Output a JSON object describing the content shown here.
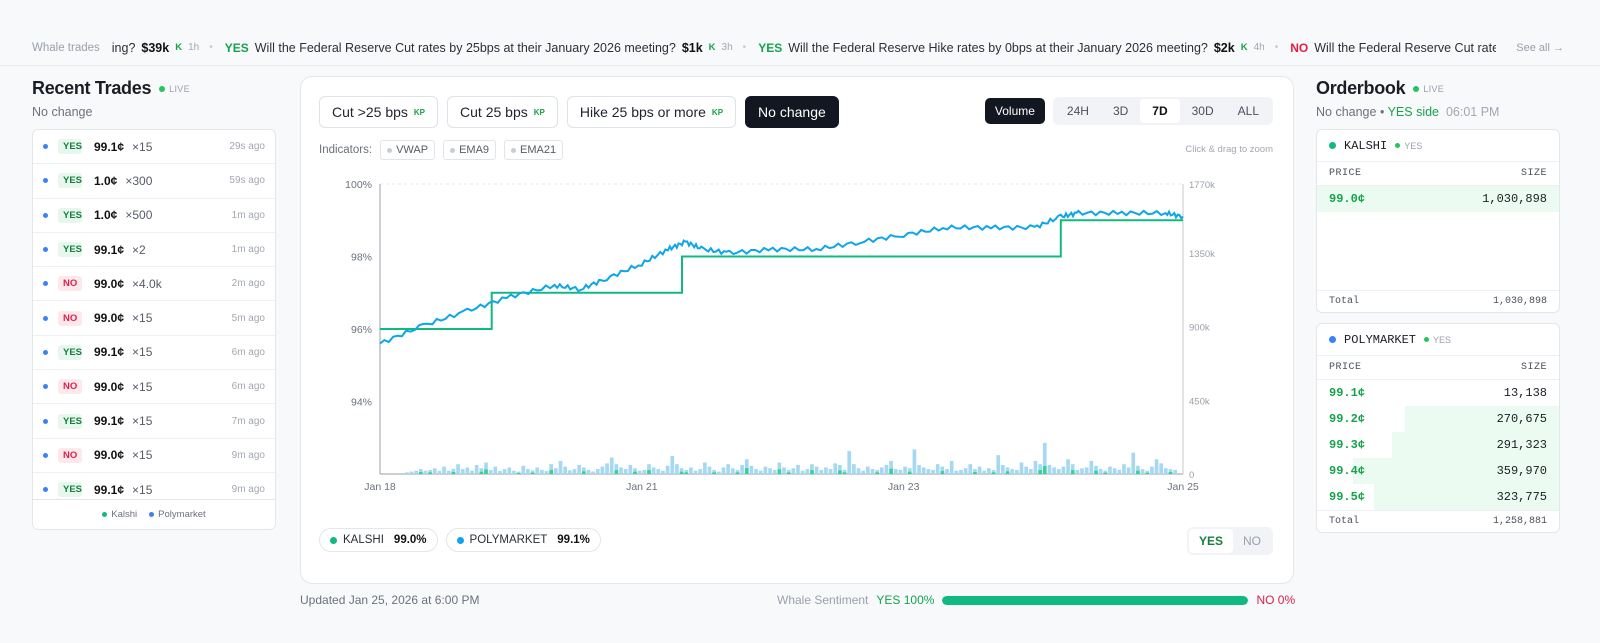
{
  "ticker": {
    "label": "Whale trades",
    "see_all": "See all →",
    "items": [
      {
        "side": "",
        "question": "ing?",
        "amount": "$39k",
        "platform": "K",
        "age": "1h"
      },
      {
        "side": "YES",
        "question": "Will the Federal Reserve Cut rates by 25bps at their January 2026 meeting?",
        "amount": "$1k",
        "platform": "K",
        "age": "3h"
      },
      {
        "side": "YES",
        "question": "Will the Federal Reserve Hike rates by 0bps at their January 2026 meeting?",
        "amount": "$2k",
        "platform": "K",
        "age": "4h"
      },
      {
        "side": "NO",
        "question": "Will the Federal Reserve Cut rates",
        "amount": "",
        "platform": "",
        "age": ""
      }
    ]
  },
  "recent_trades": {
    "title": "Recent Trades",
    "live": "LIVE",
    "subtitle": "No change",
    "rows": [
      {
        "side": "YES",
        "price": "99.1¢",
        "size": "×15",
        "ago": "29s ago"
      },
      {
        "side": "YES",
        "price": "1.0¢",
        "size": "×300",
        "ago": "59s ago"
      },
      {
        "side": "YES",
        "price": "1.0¢",
        "size": "×500",
        "ago": "1m ago"
      },
      {
        "side": "YES",
        "price": "99.1¢",
        "size": "×2",
        "ago": "1m ago"
      },
      {
        "side": "NO",
        "price": "99.0¢",
        "size": "×4.0k",
        "ago": "2m ago"
      },
      {
        "side": "NO",
        "price": "99.0¢",
        "size": "×15",
        "ago": "5m ago"
      },
      {
        "side": "YES",
        "price": "99.1¢",
        "size": "×15",
        "ago": "6m ago"
      },
      {
        "side": "NO",
        "price": "99.0¢",
        "size": "×15",
        "ago": "6m ago"
      },
      {
        "side": "YES",
        "price": "99.1¢",
        "size": "×15",
        "ago": "7m ago"
      },
      {
        "side": "NO",
        "price": "99.0¢",
        "size": "×15",
        "ago": "9m ago"
      },
      {
        "side": "YES",
        "price": "99.1¢",
        "size": "×15",
        "ago": "9m ago"
      }
    ],
    "legend": {
      "kalshi": "Kalshi",
      "polymarket": "Polymarket"
    }
  },
  "main": {
    "outcome_tabs": [
      {
        "label": "Cut >25 bps",
        "kp": "KP",
        "active": false
      },
      {
        "label": "Cut 25 bps",
        "kp": "KP",
        "active": false
      },
      {
        "label": "Hike 25 bps or more",
        "kp": "KP",
        "active": false
      },
      {
        "label": "No change",
        "kp": "",
        "active": true
      }
    ],
    "volume_label": "Volume",
    "ranges": [
      "24H",
      "3D",
      "7D",
      "30D",
      "ALL"
    ],
    "active_range": "7D",
    "indicators_label": "Indicators:",
    "indicators": [
      "VWAP",
      "EMA9",
      "EMA21"
    ],
    "hint": "Click & drag to zoom",
    "legend": [
      {
        "name": "KALSHI",
        "value": "99.0%",
        "color": "#10b981"
      },
      {
        "name": "POLYMARKET",
        "value": "99.1%",
        "color": "#0ea5e9"
      }
    ],
    "side_toggle": [
      "YES",
      "NO"
    ],
    "side_active": "YES"
  },
  "chart_data": {
    "type": "line",
    "x_ticks": [
      "Jan 18",
      "Jan 21",
      "Jan 23",
      "Jan 25"
    ],
    "y_left_ticks": [
      "100%",
      "98%",
      "96%",
      "94%"
    ],
    "y_right_ticks": [
      "1770k",
      "1350k",
      "900k",
      "450k",
      "0"
    ],
    "y_left_range": [
      92,
      100
    ],
    "y_right_range": [
      0,
      1770
    ],
    "grid": true,
    "series": [
      {
        "name": "KALSHI",
        "color": "#10b981",
        "x_days": [
          0,
          1.28,
          1.28,
          3.46,
          3.46,
          7.8,
          7.8,
          9.2
        ],
        "values": [
          96.0,
          96.0,
          97.0,
          97.0,
          98.0,
          98.0,
          99.0,
          99.0
        ]
      },
      {
        "name": "POLYMARKET",
        "color": "#0ea5e9",
        "x_days": [
          0,
          0.5,
          1.0,
          1.5,
          2.0,
          2.3,
          2.6,
          3.0,
          3.3,
          3.5,
          3.7,
          4.0,
          4.5,
          5.0,
          5.5,
          6.0,
          6.5,
          7.0,
          7.5,
          7.8,
          8.0,
          8.5,
          9.0,
          9.2
        ],
        "values": [
          95.6,
          96.1,
          96.5,
          96.9,
          97.2,
          97.1,
          97.4,
          97.8,
          98.2,
          98.4,
          98.2,
          98.1,
          98.2,
          98.2,
          98.4,
          98.6,
          98.8,
          98.8,
          98.8,
          99.1,
          99.2,
          99.2,
          99.2,
          99.1
        ]
      }
    ],
    "volume_k": [
      10,
      15,
      20,
      30,
      20,
      25,
      35,
      18,
      45,
      20,
      32,
      60,
      30,
      40,
      20,
      55,
      35,
      70,
      25,
      45,
      18,
      30,
      40,
      20,
      15,
      50,
      30,
      22,
      40,
      25,
      18,
      60,
      35,
      80,
      45,
      22,
      30,
      55,
      40,
      25,
      15,
      30,
      45,
      65,
      100,
      60,
      40,
      30,
      55,
      35,
      20,
      25,
      60,
      40,
      30,
      20,
      50,
      110,
      60,
      35,
      25,
      40,
      20,
      30,
      70,
      45,
      25,
      15,
      40,
      60,
      35,
      25,
      55,
      90,
      50,
      30,
      20,
      45,
      35,
      25,
      70,
      40,
      25,
      35,
      55,
      20,
      30,
      60,
      45,
      25,
      40,
      30,
      65,
      55,
      25,
      140,
      60,
      35,
      20,
      45,
      30,
      25,
      40,
      55,
      80,
      30,
      25,
      45,
      35,
      150,
      55,
      40,
      30,
      25,
      60,
      45,
      30,
      80,
      20,
      25,
      35,
      60,
      30,
      45,
      20,
      35,
      25,
      115,
      55,
      40,
      30,
      25,
      70,
      45,
      30,
      80,
      60,
      190,
      55,
      40,
      30,
      45,
      90,
      60,
      25,
      35,
      40,
      80,
      50,
      30,
      20,
      45,
      35,
      25,
      60,
      40,
      130,
      50,
      30,
      20,
      45,
      90,
      65,
      35,
      30,
      25
    ]
  },
  "footer": {
    "updated": "Updated Jan 25, 2026 at 6:00 PM",
    "sentiment_label": "Whale Sentiment",
    "yes_text": "YES 100%",
    "no_text": "NO 0%",
    "yes_fraction": 1.0
  },
  "orderbook": {
    "title": "Orderbook",
    "live": "LIVE",
    "sub_outcome": "No change",
    "sub_side": "YES side",
    "sub_time": "06:01 PM",
    "books": [
      {
        "platform": "KALSHI",
        "color": "#10b981",
        "side": "YES",
        "price_header": "PRICE",
        "size_header": "SIZE",
        "rows": [
          {
            "price": "99.0¢",
            "size": "1,030,898",
            "depth": 1.0
          }
        ],
        "empty_rows": 3,
        "total_label": "Total",
        "total": "1,030,898"
      },
      {
        "platform": "POLYMARKET",
        "color": "#3b82f6",
        "side": "YES",
        "price_header": "PRICE",
        "size_header": "SIZE",
        "rows": [
          {
            "price": "99.1¢",
            "size": "13,138",
            "depth": 0.0
          },
          {
            "price": "99.2¢",
            "size": "270,675",
            "depth": 0.75
          },
          {
            "price": "99.3¢",
            "size": "291,323",
            "depth": 0.81
          },
          {
            "price": "99.4¢",
            "size": "359,970",
            "depth": 1.0
          },
          {
            "price": "99.5¢",
            "size": "323,775",
            "depth": 0.9
          }
        ],
        "empty_rows": 0,
        "total_label": "Total",
        "total": "1,258,881"
      }
    ]
  }
}
